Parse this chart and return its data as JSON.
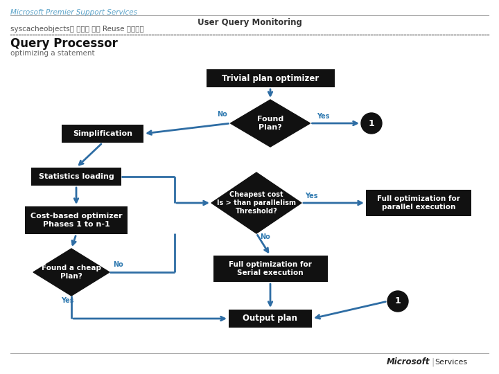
{
  "title_company": "Microsoft Premier Support Services",
  "title_main": "User Query Monitoring",
  "title_sub": "syscacheobjects를 이용한 쿼리 Reuse 모니터링",
  "section_title": "Query Processor",
  "section_sub": "optimizing a statement",
  "bg_color": "#ffffff",
  "header_line_color": "#aaaaaa",
  "dotted_line_color": "#777777",
  "box_fill": "#111111",
  "box_text": "#ffffff",
  "arrow_color": "#2e6da4",
  "label_color": "#2e79b0",
  "company_text_color": "#5ba3c9",
  "section_title_color": "#111111",
  "section_sub_color": "#666666",
  "ms_text_color": "#222222"
}
